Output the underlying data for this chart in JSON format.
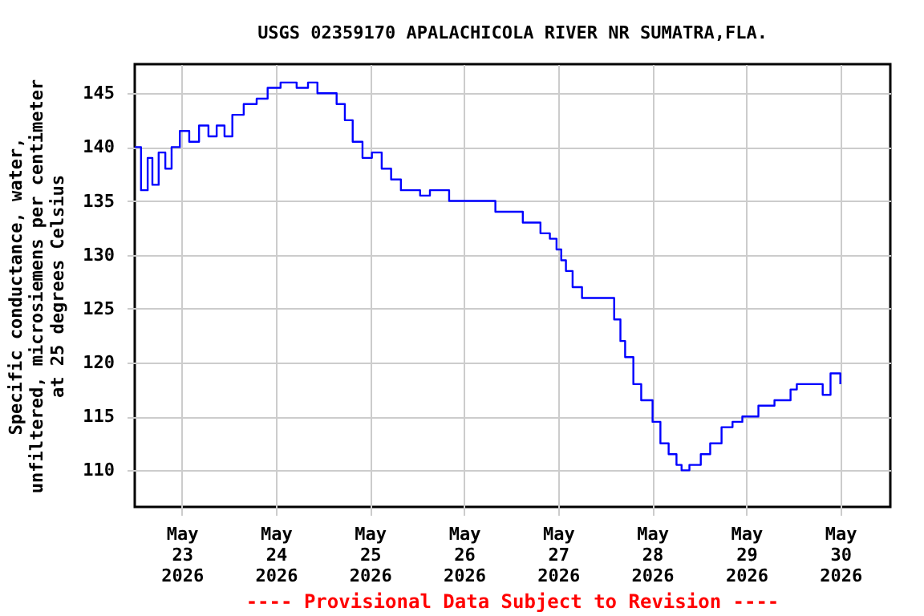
{
  "chart_data": {
    "type": "step",
    "title": "USGS 02359170 APALACHICOLA RIVER NR SUMATRA,FLA.",
    "ylabel": "Specific conductance, water,\nunfiltered, microsiemens per centimeter\nat 25 degrees Celsius",
    "annotations": [
      "---- Provisional Data Subject to Revision ----"
    ],
    "x": [
      "2026-05-22T12:00",
      "2026-05-22T13:36",
      "2026-05-22T15:18",
      "2026-05-22T16:30",
      "2026-05-22T18:06",
      "2026-05-22T19:48",
      "2026-05-22T21:24",
      "2026-05-22T23:30",
      "2026-05-23T01:54",
      "2026-05-23T04:24",
      "2026-05-23T06:48",
      "2026-05-23T08:54",
      "2026-05-23T10:54",
      "2026-05-23T12:54",
      "2026-05-23T15:48",
      "2026-05-23T19:06",
      "2026-05-23T21:54",
      "2026-05-24T01:12",
      "2026-05-24T05:18",
      "2026-05-24T08:12",
      "2026-05-24T10:36",
      "2026-05-24T13:54",
      "2026-05-24T15:30",
      "2026-05-24T17:36",
      "2026-05-24T19:36",
      "2026-05-24T22:06",
      "2026-05-25T00:30",
      "2026-05-25T03:00",
      "2026-05-25T05:24",
      "2026-05-25T07:54",
      "2026-05-25T12:48",
      "2026-05-25T15:18",
      "2026-05-25T20:12",
      "2026-05-26T08:00",
      "2026-05-26T15:00",
      "2026-05-26T19:30",
      "2026-05-26T21:54",
      "2026-05-26T23:36",
      "2026-05-27T00:48",
      "2026-05-27T02:00",
      "2026-05-27T03:42",
      "2026-05-27T06:06",
      "2026-05-27T12:42",
      "2026-05-27T14:18",
      "2026-05-27T15:54",
      "2026-05-27T17:06",
      "2026-05-27T19:12",
      "2026-05-27T21:12",
      "2026-05-28T00:06",
      "2026-05-28T02:06",
      "2026-05-28T04:12",
      "2026-05-28T06:12",
      "2026-05-28T07:30",
      "2026-05-28T09:30",
      "2026-05-28T12:24",
      "2026-05-28T14:48",
      "2026-05-28T17:42",
      "2026-05-28T20:30",
      "2026-05-28T23:00",
      "2026-05-29T03:06",
      "2026-05-29T07:12",
      "2026-05-29T11:18",
      "2026-05-29T12:54",
      "2026-05-29T18:12",
      "2026-05-29T19:30",
      "2026-05-29T21:30",
      "2026-05-30T00:00"
    ],
    "series": [
      {
        "color": "#0000ff",
        "values": [
          140,
          136,
          139,
          136.5,
          139.5,
          138,
          140,
          141.5,
          140.5,
          142,
          141,
          142,
          141,
          143,
          144,
          144.5,
          145.5,
          146,
          145.5,
          146,
          145,
          145,
          144,
          142.5,
          140.5,
          139,
          139.5,
          138,
          137,
          136,
          135.5,
          136,
          135,
          134,
          133,
          132,
          131.5,
          130.5,
          129.5,
          128.5,
          127,
          126,
          126,
          124,
          122,
          120.5,
          118,
          116.5,
          114.5,
          112.5,
          111.5,
          110.5,
          110,
          110.5,
          111.5,
          112.5,
          114,
          114.5,
          115,
          116,
          116.5,
          117.5,
          118,
          118,
          117,
          119,
          118
        ]
      }
    ],
    "xlim": [
      "2026-05-22T12:00",
      "2026-05-30T12:45"
    ],
    "xticks": [
      {
        "value": "2026-05-23",
        "label": "May\n23\n2026"
      },
      {
        "value": "2026-05-24",
        "label": "May\n24\n2026"
      },
      {
        "value": "2026-05-25",
        "label": "May\n25\n2026"
      },
      {
        "value": "2026-05-26",
        "label": "May\n26\n2026"
      },
      {
        "value": "2026-05-27",
        "label": "May\n27\n2026"
      },
      {
        "value": "2026-05-28",
        "label": "May\n28\n2026"
      },
      {
        "value": "2026-05-29",
        "label": "May\n29\n2026"
      },
      {
        "value": "2026-05-30",
        "label": "May\n30\n2026"
      }
    ],
    "ylim": [
      106.6,
      147.7
    ],
    "yticks": [
      110,
      115,
      120,
      125,
      130,
      135,
      140,
      145
    ],
    "grid": true
  }
}
